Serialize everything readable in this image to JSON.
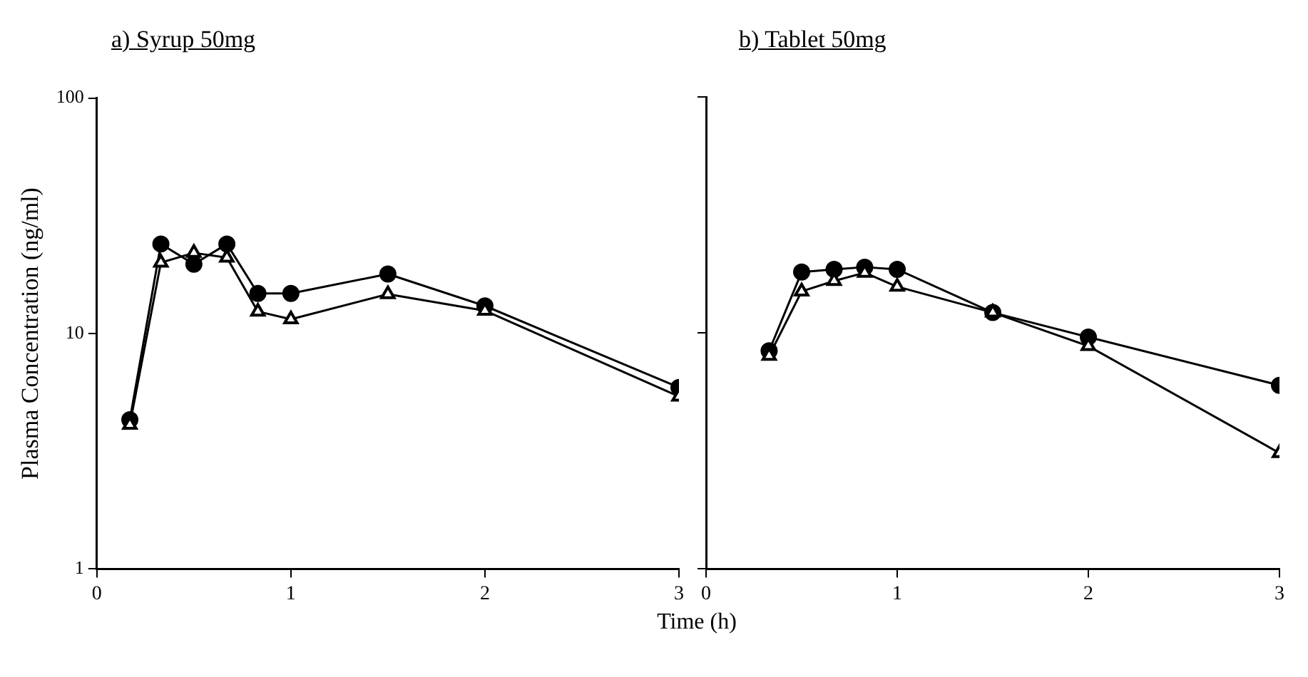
{
  "chart_data": [
    {
      "type": "line",
      "title": "a) Syrup 50mg",
      "ylabel": "Plasma Concentration (ng/ml)",
      "xlabel": "Time (h)",
      "log": "y",
      "xlim": [
        0,
        3
      ],
      "xticks": [
        0,
        1,
        2,
        3
      ],
      "ylim": [
        1,
        100
      ],
      "yticks": [
        1,
        10,
        100
      ],
      "legend": false,
      "grid": false,
      "line_style": "solid",
      "series": [
        {
          "color": "#000000",
          "marker": "circle",
          "x": [
            0.17,
            0.33,
            0.5,
            0.67,
            0.83,
            1,
            1.5,
            2,
            3
          ],
          "values": [
            4.3,
            24,
            19.7,
            24,
            14.8,
            14.8,
            17.9,
            13.1,
            5.9
          ]
        },
        {
          "color": "#000000",
          "marker": "triangle",
          "x": [
            0.17,
            0.33,
            0.5,
            0.67,
            0.83,
            1,
            1.5,
            2,
            3
          ],
          "values": [
            4.1,
            20,
            22,
            21,
            12.4,
            11.5,
            14.7,
            12.5,
            5.4
          ]
        }
      ]
    },
    {
      "type": "line",
      "title": "b) Tablet 50mg",
      "log": "y",
      "xlim": [
        0,
        3
      ],
      "xticks": [
        0,
        1,
        2,
        3
      ],
      "ylim": [
        1,
        100
      ],
      "yticks": [
        {
          "value": 1,
          "label": null
        },
        {
          "value": 10,
          "label": null
        },
        {
          "value": 100,
          "label": null
        }
      ],
      "tick_labels": "x",
      "legend": false,
      "grid": false,
      "line_style": "solid",
      "series": [
        {
          "color": "#000000",
          "marker": "circle",
          "x": [
            0.33,
            0.5,
            0.67,
            0.83,
            1,
            1.5,
            2,
            3
          ],
          "values": [
            8.4,
            18.1,
            18.6,
            19,
            18.6,
            12.2,
            9.6,
            6
          ]
        },
        {
          "color": "#000000",
          "marker": "triangle",
          "x": [
            0.33,
            0.5,
            0.67,
            0.83,
            1,
            1.5,
            2,
            3
          ],
          "values": [
            8,
            15,
            16.6,
            18,
            15.7,
            12.2,
            8.8,
            3.1
          ]
        }
      ]
    }
  ]
}
